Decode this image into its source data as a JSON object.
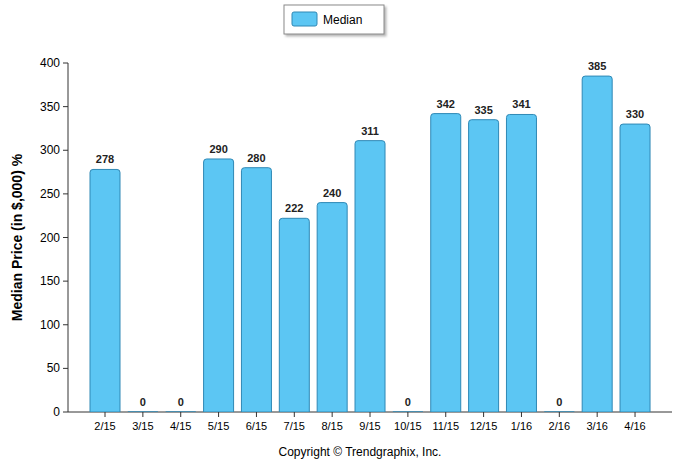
{
  "chart_data": {
    "type": "bar",
    "categories": [
      "2/15",
      "3/15",
      "4/15",
      "5/15",
      "6/15",
      "7/15",
      "8/15",
      "9/15",
      "10/15",
      "11/15",
      "12/15",
      "1/16",
      "2/16",
      "3/16",
      "4/16"
    ],
    "series": [
      {
        "name": "Median",
        "color": "#5cc6f3",
        "values": [
          278,
          0,
          0,
          290,
          280,
          222,
          240,
          311,
          0,
          342,
          335,
          341,
          0,
          385,
          330
        ]
      }
    ],
    "y_label": "Median Price (in $,000) %",
    "ylim": [
      0,
      400
    ],
    "yticks": [
      0,
      50,
      100,
      150,
      200,
      250,
      300,
      350,
      400
    ],
    "grid": false,
    "legend": "top",
    "data_labels": true,
    "annotations": [
      "Copyright © Trendgraphix, Inc."
    ]
  }
}
